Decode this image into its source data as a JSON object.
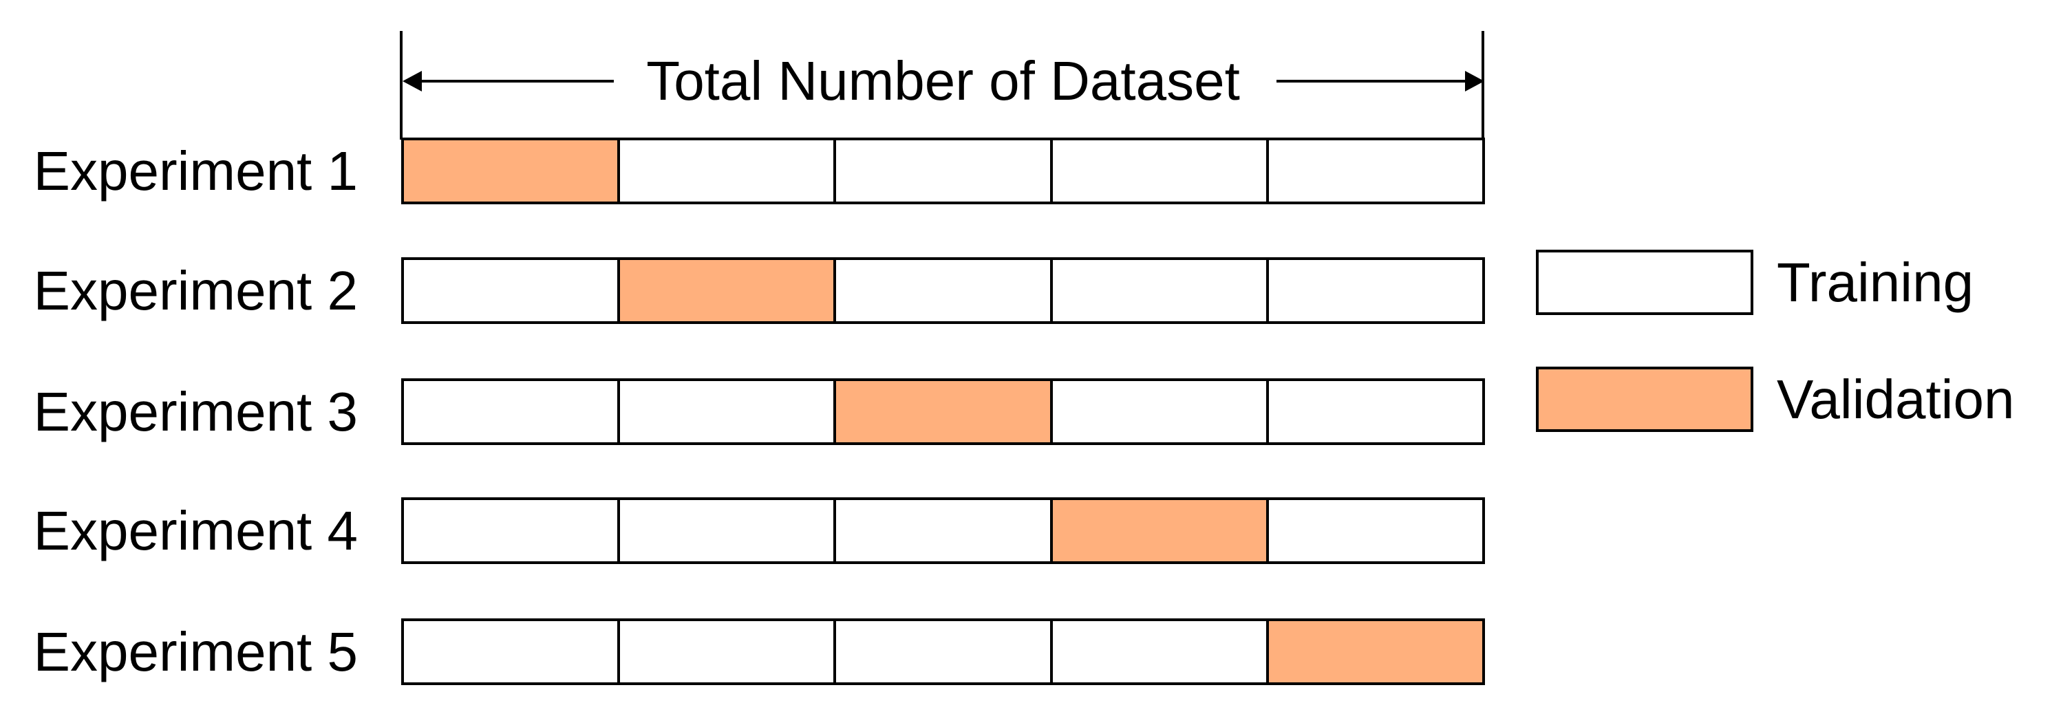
{
  "header": {
    "title": "Total Number of Dataset"
  },
  "folds_per_experiment": 5,
  "experiments": [
    {
      "label": "Experiment 1",
      "validation_fold": 1
    },
    {
      "label": "Experiment 2",
      "validation_fold": 2
    },
    {
      "label": "Experiment 3",
      "validation_fold": 3
    },
    {
      "label": "Experiment 4",
      "validation_fold": 4
    },
    {
      "label": "Experiment 5",
      "validation_fold": 5
    }
  ],
  "legend": {
    "training": {
      "label": "Training",
      "color": "#FFFFFF"
    },
    "validation": {
      "label": "Validation",
      "color": "#FFB07D"
    }
  },
  "colors": {
    "border": "#000000",
    "background": "#FFFFFF",
    "validation": "#FFB07D"
  }
}
